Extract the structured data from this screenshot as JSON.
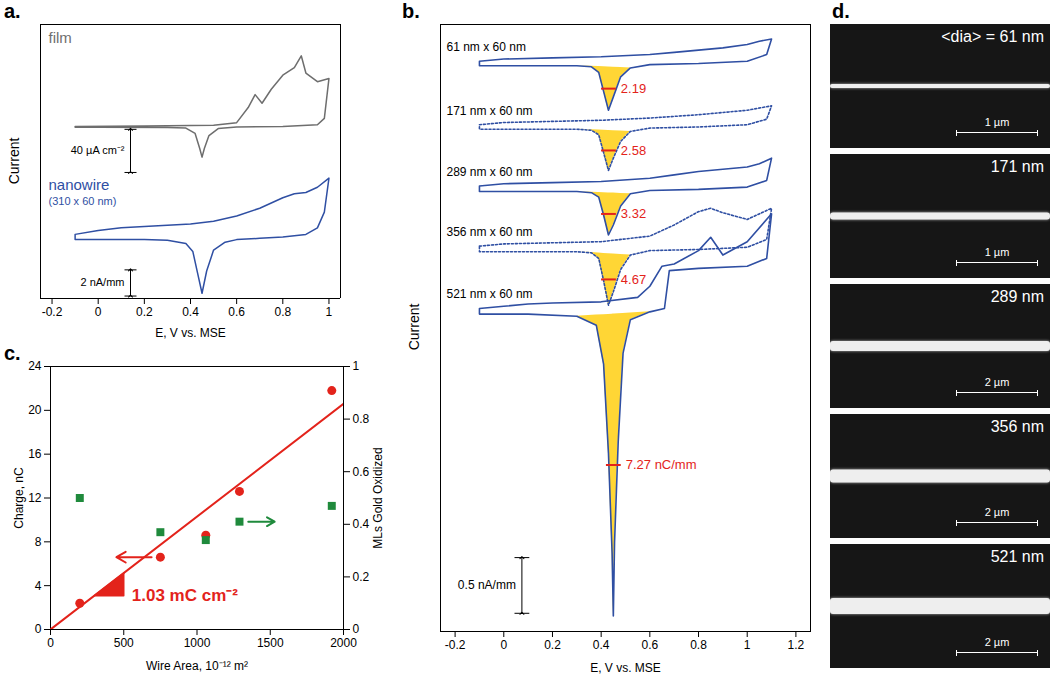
{
  "chart_data": [
    {
      "panel_label": "a.",
      "type": "line",
      "xlabel": "E, V vs. MSE",
      "ylabel": "Current",
      "xlim": [
        -0.25,
        1.05
      ],
      "xticks": [
        -0.2,
        0,
        0.2,
        0.4,
        0.6,
        0.8,
        1
      ],
      "tick_labels": "x",
      "series": [
        {
          "name": "film",
          "color": "#6e6e6e",
          "line_style": "solid",
          "ylim": [
            -45,
            95
          ],
          "scale_bar": {
            "value": 40,
            "label": "40 µA cm⁻²"
          },
          "x": [
            -0.1,
            0.2,
            0.5,
            0.6,
            0.65,
            0.68,
            0.71,
            0.75,
            0.8,
            0.85,
            0.88,
            0.9,
            0.95,
            1.0,
            0.98,
            0.95,
            0.8,
            0.6,
            0.52,
            0.48,
            0.46,
            0.45,
            0.44,
            0.42,
            0.38,
            0.3,
            0,
            -0.1,
            -0.1
          ],
          "values": [
            0.5,
            0.8,
            1.5,
            4,
            18,
            30,
            22,
            35,
            48,
            55,
            66,
            50,
            42,
            45,
            8,
            2,
            0.5,
            0,
            -1.5,
            -8,
            -20,
            -28,
            -20,
            -6,
            -1,
            -0.5,
            -0.3,
            -0.3,
            0.5
          ]
        },
        {
          "name": "nanowire",
          "subtitle": "(310 x 60 nm)",
          "color": "#2f4fa3",
          "line_style": "solid",
          "ylim": [
            -4.6,
            4.8
          ],
          "scale_bar": {
            "value": 2,
            "label": "2 nA/mm"
          },
          "x": [
            -0.1,
            0,
            0.1,
            0.2,
            0.3,
            0.4,
            0.5,
            0.6,
            0.7,
            0.8,
            0.85,
            0.9,
            0.95,
            1.0,
            0.98,
            0.95,
            0.9,
            0.8,
            0.7,
            0.6,
            0.55,
            0.5,
            0.47,
            0.45,
            0.43,
            0.41,
            0.38,
            0.3,
            0.2,
            0.1,
            0,
            -0.1,
            -0.1
          ],
          "values": [
            0.3,
            0.6,
            0.8,
            0.9,
            1.0,
            1.1,
            1.3,
            1.7,
            2.3,
            3.1,
            3.4,
            3.5,
            3.9,
            4.6,
            2.0,
            0.8,
            0.3,
            0.1,
            0,
            -0.1,
            -0.3,
            -0.9,
            -2.5,
            -4.2,
            -2.6,
            -1.0,
            -0.4,
            -0.15,
            -0.1,
            -0.1,
            -0.1,
            -0.1,
            0.3
          ]
        }
      ]
    },
    {
      "panel_label": "b.",
      "type": "line",
      "xlabel": "E, V vs. MSE",
      "ylabel": "Current",
      "xlim": [
        -0.26,
        1.26
      ],
      "xticks": [
        -0.2,
        0,
        0.2,
        0.4,
        0.6,
        0.8,
        1,
        1.2
      ],
      "ylim": [
        -5.1,
        0.35
      ],
      "yticks": [],
      "tick_labels": "x",
      "scale_bar": {
        "value": 0.5,
        "label": "0.5 nA/mm"
      },
      "series": [
        {
          "name": "61 nm x 60 nm",
          "color": "#2f4fa3",
          "line_style": "solid",
          "charge": 2.19,
          "x": [
            -0.1,
            0,
            0.2,
            0.4,
            0.6,
            0.7,
            0.8,
            0.9,
            1.0,
            1.05,
            1.1,
            1.08,
            1.0,
            0.8,
            0.6,
            0.52,
            0.48,
            0.45,
            0.43,
            0.41,
            0.39,
            0.36,
            0.3,
            0.1,
            -0.1,
            -0.1
          ],
          "values": [
            0.02,
            0.04,
            0.05,
            0.06,
            0.08,
            0.1,
            0.12,
            0.14,
            0.17,
            0.2,
            0.22,
            0.08,
            0.02,
            0,
            -0.01,
            -0.04,
            -0.12,
            -0.3,
            -0.42,
            -0.25,
            -0.08,
            -0.03,
            -0.02,
            -0.02,
            -0.02,
            0.02
          ]
        },
        {
          "name": "171 nm x 60 nm",
          "color": "#2f4fa3",
          "line_style": "dotted",
          "charge": 2.58,
          "x": [
            -0.1,
            0,
            0.2,
            0.4,
            0.6,
            0.8,
            0.9,
            1.0,
            1.1,
            1.08,
            1.0,
            0.8,
            0.6,
            0.52,
            0.48,
            0.45,
            0.43,
            0.41,
            0.39,
            0.36,
            0.3,
            0.1,
            -0.1,
            -0.1
          ],
          "values": [
            -0.55,
            -0.53,
            -0.52,
            -0.51,
            -0.49,
            -0.46,
            -0.44,
            -0.42,
            -0.38,
            -0.5,
            -0.55,
            -0.57,
            -0.58,
            -0.61,
            -0.7,
            -0.85,
            -0.96,
            -0.8,
            -0.64,
            -0.6,
            -0.59,
            -0.59,
            -0.59,
            -0.55
          ]
        },
        {
          "name": "289 nm x 60 nm",
          "color": "#2f4fa3",
          "line_style": "solid",
          "charge": 3.32,
          "x": [
            -0.1,
            0,
            0.2,
            0.4,
            0.6,
            0.7,
            0.8,
            0.9,
            1.0,
            1.05,
            1.1,
            1.08,
            1.0,
            0.8,
            0.6,
            0.52,
            0.48,
            0.45,
            0.43,
            0.41,
            0.39,
            0.36,
            0.3,
            0.1,
            -0.1,
            -0.1
          ],
          "values": [
            -1.1,
            -1.08,
            -1.07,
            -1.06,
            -1.03,
            -1.0,
            -0.97,
            -0.95,
            -0.93,
            -0.9,
            -0.85,
            -1.05,
            -1.11,
            -1.13,
            -1.14,
            -1.17,
            -1.28,
            -1.45,
            -1.54,
            -1.36,
            -1.2,
            -1.16,
            -1.15,
            -1.15,
            -1.15,
            -1.1
          ]
        },
        {
          "name": "356 nm x 60 nm",
          "color": "#2f4fa3",
          "line_style": "dotted",
          "charge": 4.67,
          "x": [
            -0.1,
            0,
            0.2,
            0.4,
            0.6,
            0.7,
            0.8,
            0.85,
            0.9,
            1.0,
            1.1,
            1.08,
            1.0,
            0.8,
            0.6,
            0.52,
            0.48,
            0.45,
            0.43,
            0.41,
            0.39,
            0.36,
            0.3,
            0.1,
            -0.1,
            -0.1
          ],
          "values": [
            -1.64,
            -1.62,
            -1.61,
            -1.6,
            -1.55,
            -1.45,
            -1.33,
            -1.3,
            -1.34,
            -1.4,
            -1.3,
            -1.58,
            -1.65,
            -1.67,
            -1.68,
            -1.72,
            -1.85,
            -2.05,
            -2.17,
            -1.95,
            -1.75,
            -1.7,
            -1.69,
            -1.69,
            -1.69,
            -1.64
          ]
        },
        {
          "name": "521 nm x 60 nm",
          "color": "#2f4fa3",
          "line_style": "solid",
          "charge": {
            "value": 7.27,
            "label": "7.27 nC/mm"
          },
          "x": [
            -0.1,
            0,
            0.1,
            0.2,
            0.4,
            0.55,
            0.6,
            0.65,
            0.7,
            0.8,
            0.85,
            0.9,
            1.0,
            1.1,
            1.08,
            1.0,
            0.8,
            0.68,
            0.66,
            0.6,
            0.52,
            0.49,
            0.47,
            0.455,
            0.45,
            0.445,
            0.43,
            0.41,
            0.38,
            0.3,
            0.1,
            -0.1,
            -0.1
          ],
          "values": [
            -2.2,
            -2.18,
            -2.16,
            -2.15,
            -2.14,
            -2.1,
            -2.0,
            -1.82,
            -1.8,
            -1.68,
            -1.56,
            -1.72,
            -1.6,
            -1.35,
            -1.75,
            -1.82,
            -1.84,
            -1.86,
            -2.2,
            -2.23,
            -2.3,
            -2.6,
            -3.4,
            -4.3,
            -4.96,
            -4.4,
            -3.5,
            -2.7,
            -2.35,
            -2.27,
            -2.25,
            -2.25,
            -2.2
          ]
        }
      ]
    },
    {
      "panel_label": "c.",
      "type": "scatter",
      "xlabel": "Wire Area, 10⁻¹² m²",
      "ylabel": "Charge, nC",
      "y2label": "MLs Gold Oxidized",
      "xlim": [
        0,
        2000
      ],
      "xticks": [
        0,
        500,
        1000,
        1500,
        2000
      ],
      "ylim": [
        0,
        24
      ],
      "yticks": [
        0,
        4,
        8,
        12,
        16,
        20,
        24
      ],
      "y2lim": [
        0,
        1
      ],
      "y2ticks": [
        0,
        0.2,
        0.4,
        0.6,
        0.8,
        1
      ],
      "annotation": "1.03 mC cm⁻²",
      "series": [
        {
          "type": "scatter",
          "color": "#e3231b",
          "marker": "circle",
          "x": [
            200,
            750,
            1060,
            1290,
            1920
          ],
          "values": [
            2.4,
            6.6,
            8.6,
            12.6,
            21.8
          ]
        },
        {
          "type": "line",
          "color": "#e3231b",
          "line_style": "solid",
          "x": [
            0,
            2000
          ],
          "values": [
            0,
            20.6
          ]
        },
        {
          "type": "scatter",
          "color": "#1f8a3c",
          "marker": "square",
          "axis": "y2",
          "x": [
            200,
            750,
            1060,
            1290,
            1920
          ],
          "values": [
            0.5,
            0.37,
            0.34,
            0.41,
            0.47
          ]
        }
      ]
    },
    {
      "panel_label": "d.",
      "type": "image",
      "images": [
        {
          "label": "<dia> = 61 nm",
          "scale_bar": "1 µm"
        },
        {
          "label": "171 nm",
          "scale_bar": "1 µm"
        },
        {
          "label": "289 nm",
          "scale_bar": "2 µm"
        },
        {
          "label": "356 nm",
          "scale_bar": "2 µm"
        },
        {
          "label": "521 nm",
          "scale_bar": "2 µm"
        }
      ]
    }
  ]
}
